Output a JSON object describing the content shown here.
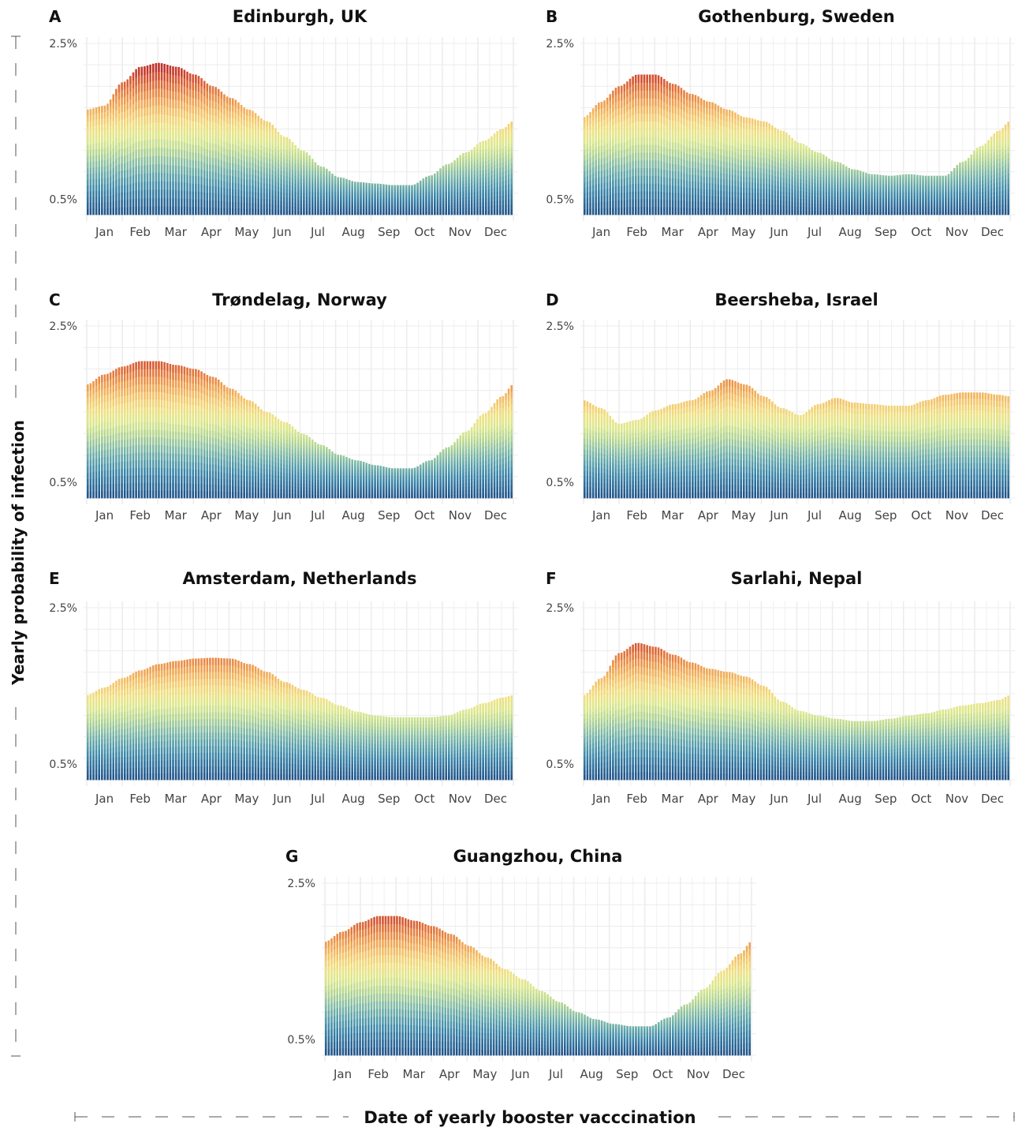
{
  "figure": {
    "ylabel": "Yearly probability of infection",
    "xlabel": "Date of yearly booster vacccination"
  },
  "chart_data": [
    {
      "panel": "A",
      "title": "Edinburgh, UK",
      "type": "area",
      "x": [
        "Jan",
        "Feb",
        "Mar",
        "Apr",
        "May",
        "Jun",
        "Jul",
        "Aug",
        "Sep",
        "Oct",
        "Nov",
        "Dec"
      ],
      "y_ticks": [
        "2.5%",
        "0.5%"
      ],
      "ylim": [
        0.3,
        2.5
      ],
      "curve": [
        [
          0.0,
          1.65
        ],
        [
          0.5,
          1.7
        ],
        [
          1.0,
          2.0
        ],
        [
          1.5,
          2.2
        ],
        [
          2.0,
          2.25
        ],
        [
          2.5,
          2.2
        ],
        [
          3.0,
          2.1
        ],
        [
          3.5,
          1.95
        ],
        [
          4.0,
          1.8
        ],
        [
          4.5,
          1.65
        ],
        [
          5.0,
          1.5
        ],
        [
          5.5,
          1.3
        ],
        [
          6.0,
          1.12
        ],
        [
          6.5,
          0.92
        ],
        [
          7.0,
          0.78
        ],
        [
          7.5,
          0.72
        ],
        [
          8.0,
          0.7
        ],
        [
          8.5,
          0.68
        ],
        [
          9.0,
          0.68
        ],
        [
          9.5,
          0.8
        ],
        [
          10.0,
          0.95
        ],
        [
          10.5,
          1.1
        ],
        [
          11.0,
          1.25
        ],
        [
          11.5,
          1.4
        ],
        [
          11.8,
          1.5
        ]
      ]
    },
    {
      "panel": "B",
      "title": "Gothenburg, Sweden",
      "type": "area",
      "x": [
        "Jan",
        "Feb",
        "Mar",
        "Apr",
        "May",
        "Jun",
        "Jul",
        "Aug",
        "Sep",
        "Oct",
        "Nov",
        "Dec"
      ],
      "y_ticks": [
        "2.5%",
        "0.5%"
      ],
      "ylim": [
        0.3,
        2.5
      ],
      "curve": [
        [
          0.0,
          1.55
        ],
        [
          0.5,
          1.75
        ],
        [
          1.0,
          1.95
        ],
        [
          1.5,
          2.1
        ],
        [
          2.0,
          2.1
        ],
        [
          2.5,
          1.98
        ],
        [
          3.0,
          1.85
        ],
        [
          3.5,
          1.75
        ],
        [
          4.0,
          1.65
        ],
        [
          4.5,
          1.55
        ],
        [
          5.0,
          1.5
        ],
        [
          5.5,
          1.38
        ],
        [
          6.0,
          1.22
        ],
        [
          6.5,
          1.1
        ],
        [
          7.0,
          0.98
        ],
        [
          7.5,
          0.88
        ],
        [
          8.0,
          0.82
        ],
        [
          8.5,
          0.8
        ],
        [
          9.0,
          0.82
        ],
        [
          9.5,
          0.8
        ],
        [
          10.0,
          0.8
        ],
        [
          10.5,
          0.98
        ],
        [
          11.0,
          1.18
        ],
        [
          11.5,
          1.38
        ],
        [
          11.8,
          1.5
        ]
      ]
    },
    {
      "panel": "C",
      "title": "Trøndelag, Norway",
      "type": "area",
      "x": [
        "Jan",
        "Feb",
        "Mar",
        "Apr",
        "May",
        "Jun",
        "Jul",
        "Aug",
        "Sep",
        "Oct",
        "Nov",
        "Dec"
      ],
      "y_ticks": [
        "2.5%",
        "0.5%"
      ],
      "ylim": [
        0.3,
        2.5
      ],
      "curve": [
        [
          0.0,
          1.75
        ],
        [
          0.5,
          1.88
        ],
        [
          1.0,
          1.98
        ],
        [
          1.5,
          2.05
        ],
        [
          2.0,
          2.05
        ],
        [
          2.5,
          2.0
        ],
        [
          3.0,
          1.95
        ],
        [
          3.5,
          1.85
        ],
        [
          4.0,
          1.7
        ],
        [
          4.5,
          1.55
        ],
        [
          5.0,
          1.4
        ],
        [
          5.5,
          1.27
        ],
        [
          6.0,
          1.12
        ],
        [
          6.5,
          0.98
        ],
        [
          7.0,
          0.85
        ],
        [
          7.5,
          0.78
        ],
        [
          8.0,
          0.72
        ],
        [
          8.5,
          0.68
        ],
        [
          9.0,
          0.68
        ],
        [
          9.5,
          0.78
        ],
        [
          10.0,
          0.95
        ],
        [
          10.5,
          1.15
        ],
        [
          11.0,
          1.38
        ],
        [
          11.5,
          1.6
        ],
        [
          11.8,
          1.75
        ]
      ]
    },
    {
      "panel": "D",
      "title": "Beersheba, Israel",
      "type": "area",
      "x": [
        "Jan",
        "Feb",
        "Mar",
        "Apr",
        "May",
        "Jun",
        "Jul",
        "Aug",
        "Sep",
        "Oct",
        "Nov",
        "Dec"
      ],
      "y_ticks": [
        "2.5%",
        "0.5%"
      ],
      "ylim": [
        0.3,
        2.5
      ],
      "curve": [
        [
          0.0,
          1.55
        ],
        [
          0.5,
          1.45
        ],
        [
          1.0,
          1.25
        ],
        [
          1.5,
          1.3
        ],
        [
          2.0,
          1.42
        ],
        [
          2.5,
          1.5
        ],
        [
          3.0,
          1.55
        ],
        [
          3.5,
          1.67
        ],
        [
          4.0,
          1.82
        ],
        [
          4.5,
          1.75
        ],
        [
          5.0,
          1.6
        ],
        [
          5.5,
          1.45
        ],
        [
          6.0,
          1.36
        ],
        [
          6.5,
          1.5
        ],
        [
          7.0,
          1.58
        ],
        [
          7.5,
          1.52
        ],
        [
          8.0,
          1.5
        ],
        [
          8.5,
          1.48
        ],
        [
          9.0,
          1.48
        ],
        [
          9.5,
          1.55
        ],
        [
          10.0,
          1.62
        ],
        [
          10.5,
          1.65
        ],
        [
          11.0,
          1.65
        ],
        [
          11.5,
          1.62
        ],
        [
          11.8,
          1.6
        ]
      ]
    },
    {
      "panel": "E",
      "title": "Amsterdam, Netherlands",
      "type": "area",
      "x": [
        "Jan",
        "Feb",
        "Mar",
        "Apr",
        "May",
        "Jun",
        "Jul",
        "Aug",
        "Sep",
        "Oct",
        "Nov",
        "Dec"
      ],
      "y_ticks": [
        "2.5%",
        "0.5%"
      ],
      "ylim": [
        0.3,
        2.5
      ],
      "curve": [
        [
          0.0,
          1.38
        ],
        [
          0.5,
          1.48
        ],
        [
          1.0,
          1.6
        ],
        [
          1.5,
          1.7
        ],
        [
          2.0,
          1.78
        ],
        [
          2.5,
          1.82
        ],
        [
          3.0,
          1.85
        ],
        [
          3.5,
          1.86
        ],
        [
          4.0,
          1.85
        ],
        [
          4.5,
          1.78
        ],
        [
          5.0,
          1.68
        ],
        [
          5.5,
          1.55
        ],
        [
          6.0,
          1.45
        ],
        [
          6.5,
          1.35
        ],
        [
          7.0,
          1.25
        ],
        [
          7.5,
          1.17
        ],
        [
          8.0,
          1.12
        ],
        [
          8.5,
          1.1
        ],
        [
          9.0,
          1.1
        ],
        [
          9.5,
          1.1
        ],
        [
          10.0,
          1.12
        ],
        [
          10.5,
          1.2
        ],
        [
          11.0,
          1.28
        ],
        [
          11.5,
          1.35
        ],
        [
          11.8,
          1.38
        ]
      ]
    },
    {
      "panel": "F",
      "title": "Sarlahi, Nepal",
      "type": "area",
      "x": [
        "Jan",
        "Feb",
        "Mar",
        "Apr",
        "May",
        "Jun",
        "Jul",
        "Aug",
        "Sep",
        "Oct",
        "Nov",
        "Dec"
      ],
      "y_ticks": [
        "2.5%",
        "0.5%"
      ],
      "ylim": [
        0.3,
        2.5
      ],
      "curve": [
        [
          0.0,
          1.38
        ],
        [
          0.5,
          1.6
        ],
        [
          1.0,
          1.92
        ],
        [
          1.5,
          2.05
        ],
        [
          2.0,
          2.0
        ],
        [
          2.5,
          1.9
        ],
        [
          3.0,
          1.8
        ],
        [
          3.5,
          1.72
        ],
        [
          4.0,
          1.68
        ],
        [
          4.5,
          1.62
        ],
        [
          5.0,
          1.5
        ],
        [
          5.5,
          1.3
        ],
        [
          6.0,
          1.18
        ],
        [
          6.5,
          1.12
        ],
        [
          7.0,
          1.08
        ],
        [
          7.5,
          1.05
        ],
        [
          8.0,
          1.05
        ],
        [
          8.5,
          1.08
        ],
        [
          9.0,
          1.12
        ],
        [
          9.5,
          1.15
        ],
        [
          10.0,
          1.2
        ],
        [
          10.5,
          1.25
        ],
        [
          11.0,
          1.28
        ],
        [
          11.5,
          1.32
        ],
        [
          11.8,
          1.38
        ]
      ]
    },
    {
      "panel": "G",
      "title": "Guangzhou, China",
      "type": "area",
      "x": [
        "Jan",
        "Feb",
        "Mar",
        "Apr",
        "May",
        "Jun",
        "Jul",
        "Aug",
        "Sep",
        "Oct",
        "Nov",
        "Dec"
      ],
      "y_ticks": [
        "2.5%",
        "0.5%"
      ],
      "ylim": [
        0.3,
        2.5
      ],
      "curve": [
        [
          0.0,
          1.75
        ],
        [
          0.5,
          1.88
        ],
        [
          1.0,
          2.0
        ],
        [
          1.5,
          2.08
        ],
        [
          2.0,
          2.08
        ],
        [
          2.5,
          2.02
        ],
        [
          3.0,
          1.95
        ],
        [
          3.5,
          1.85
        ],
        [
          4.0,
          1.7
        ],
        [
          4.5,
          1.55
        ],
        [
          5.0,
          1.4
        ],
        [
          5.5,
          1.27
        ],
        [
          6.0,
          1.12
        ],
        [
          6.5,
          0.98
        ],
        [
          7.0,
          0.85
        ],
        [
          7.5,
          0.76
        ],
        [
          8.0,
          0.7
        ],
        [
          8.5,
          0.67
        ],
        [
          9.0,
          0.67
        ],
        [
          9.5,
          0.78
        ],
        [
          10.0,
          0.95
        ],
        [
          10.5,
          1.15
        ],
        [
          11.0,
          1.38
        ],
        [
          11.5,
          1.6
        ],
        [
          11.8,
          1.75
        ]
      ]
    }
  ],
  "palette": [
    "#1e4f86",
    "#2b6a99",
    "#3b86a9",
    "#5ca2ab",
    "#85bda4",
    "#b4d68f",
    "#dbe88a",
    "#f0e07f",
    "#f4c266",
    "#ef9c4c",
    "#e07039",
    "#cc3f2b",
    "#a8182b"
  ]
}
